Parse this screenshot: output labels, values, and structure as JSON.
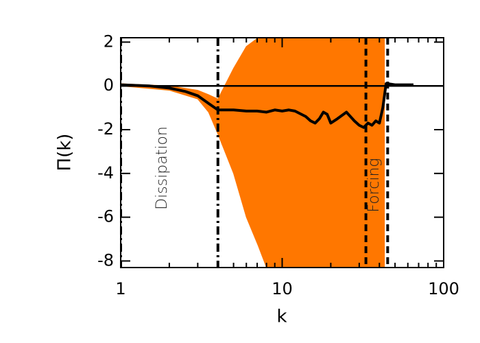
{
  "chart_data": {
    "type": "line",
    "xlabel": "k",
    "ylabel": "Π(k)",
    "xscale": "log",
    "xlim": [
      1,
      100
    ],
    "ylim": [
      -8.3,
      2.2
    ],
    "xticks": [
      1,
      10,
      100
    ],
    "xminorticks": [
      2,
      3,
      4,
      5,
      6,
      7,
      8,
      9,
      20,
      30,
      40,
      50,
      60,
      70,
      80,
      90
    ],
    "yticks": [
      2,
      0,
      -2,
      -4,
      -6,
      -8
    ],
    "band": {
      "color": "#ff7700",
      "x": [
        1,
        2,
        3,
        3.5,
        4,
        5,
        6,
        7.1,
        8,
        33,
        43
      ],
      "upper": [
        0.1,
        0,
        -0.2,
        -0.4,
        -0.6,
        0.8,
        1.8,
        2.2,
        2.2,
        2.2,
        2.2
      ],
      "lower": [
        0,
        -0.2,
        -0.6,
        -1.2,
        -2.2,
        -4,
        -6,
        -7.3,
        -8.3,
        -8.3,
        -8.3
      ]
    },
    "x": [
      1,
      1.5,
      2,
      2.5,
      3,
      3.5,
      4,
      5,
      6,
      7,
      8,
      9,
      10,
      11,
      12,
      14,
      15,
      16,
      17,
      18,
      19,
      20,
      22,
      25,
      28,
      30,
      32,
      34,
      36,
      38,
      40,
      42,
      44,
      45,
      50,
      65
    ],
    "series": [
      {
        "color": "#000000",
        "values": [
          0.05,
          0,
          -0.1,
          -0.25,
          -0.45,
          -0.8,
          -1.1,
          -1.1,
          -1.15,
          -1.15,
          -1.2,
          -1.1,
          -1.15,
          -1.1,
          -1.15,
          -1.4,
          -1.6,
          -1.7,
          -1.5,
          -1.2,
          -1.3,
          -1.7,
          -1.5,
          -1.2,
          -1.6,
          -1.8,
          -1.9,
          -1.7,
          -1.8,
          -1.6,
          -1.7,
          -1.0,
          0.1,
          0.1,
          0.05,
          0.05
        ]
      }
    ],
    "hline": 0,
    "vlines": [
      {
        "x": 1,
        "style": "dashdot"
      },
      {
        "x": 4,
        "style": "dashdot"
      },
      {
        "x": 33,
        "style": "dashed"
      },
      {
        "x": 45,
        "style": "dashed"
      }
    ],
    "annotations": [
      "Dissipation",
      "Forcing"
    ]
  }
}
